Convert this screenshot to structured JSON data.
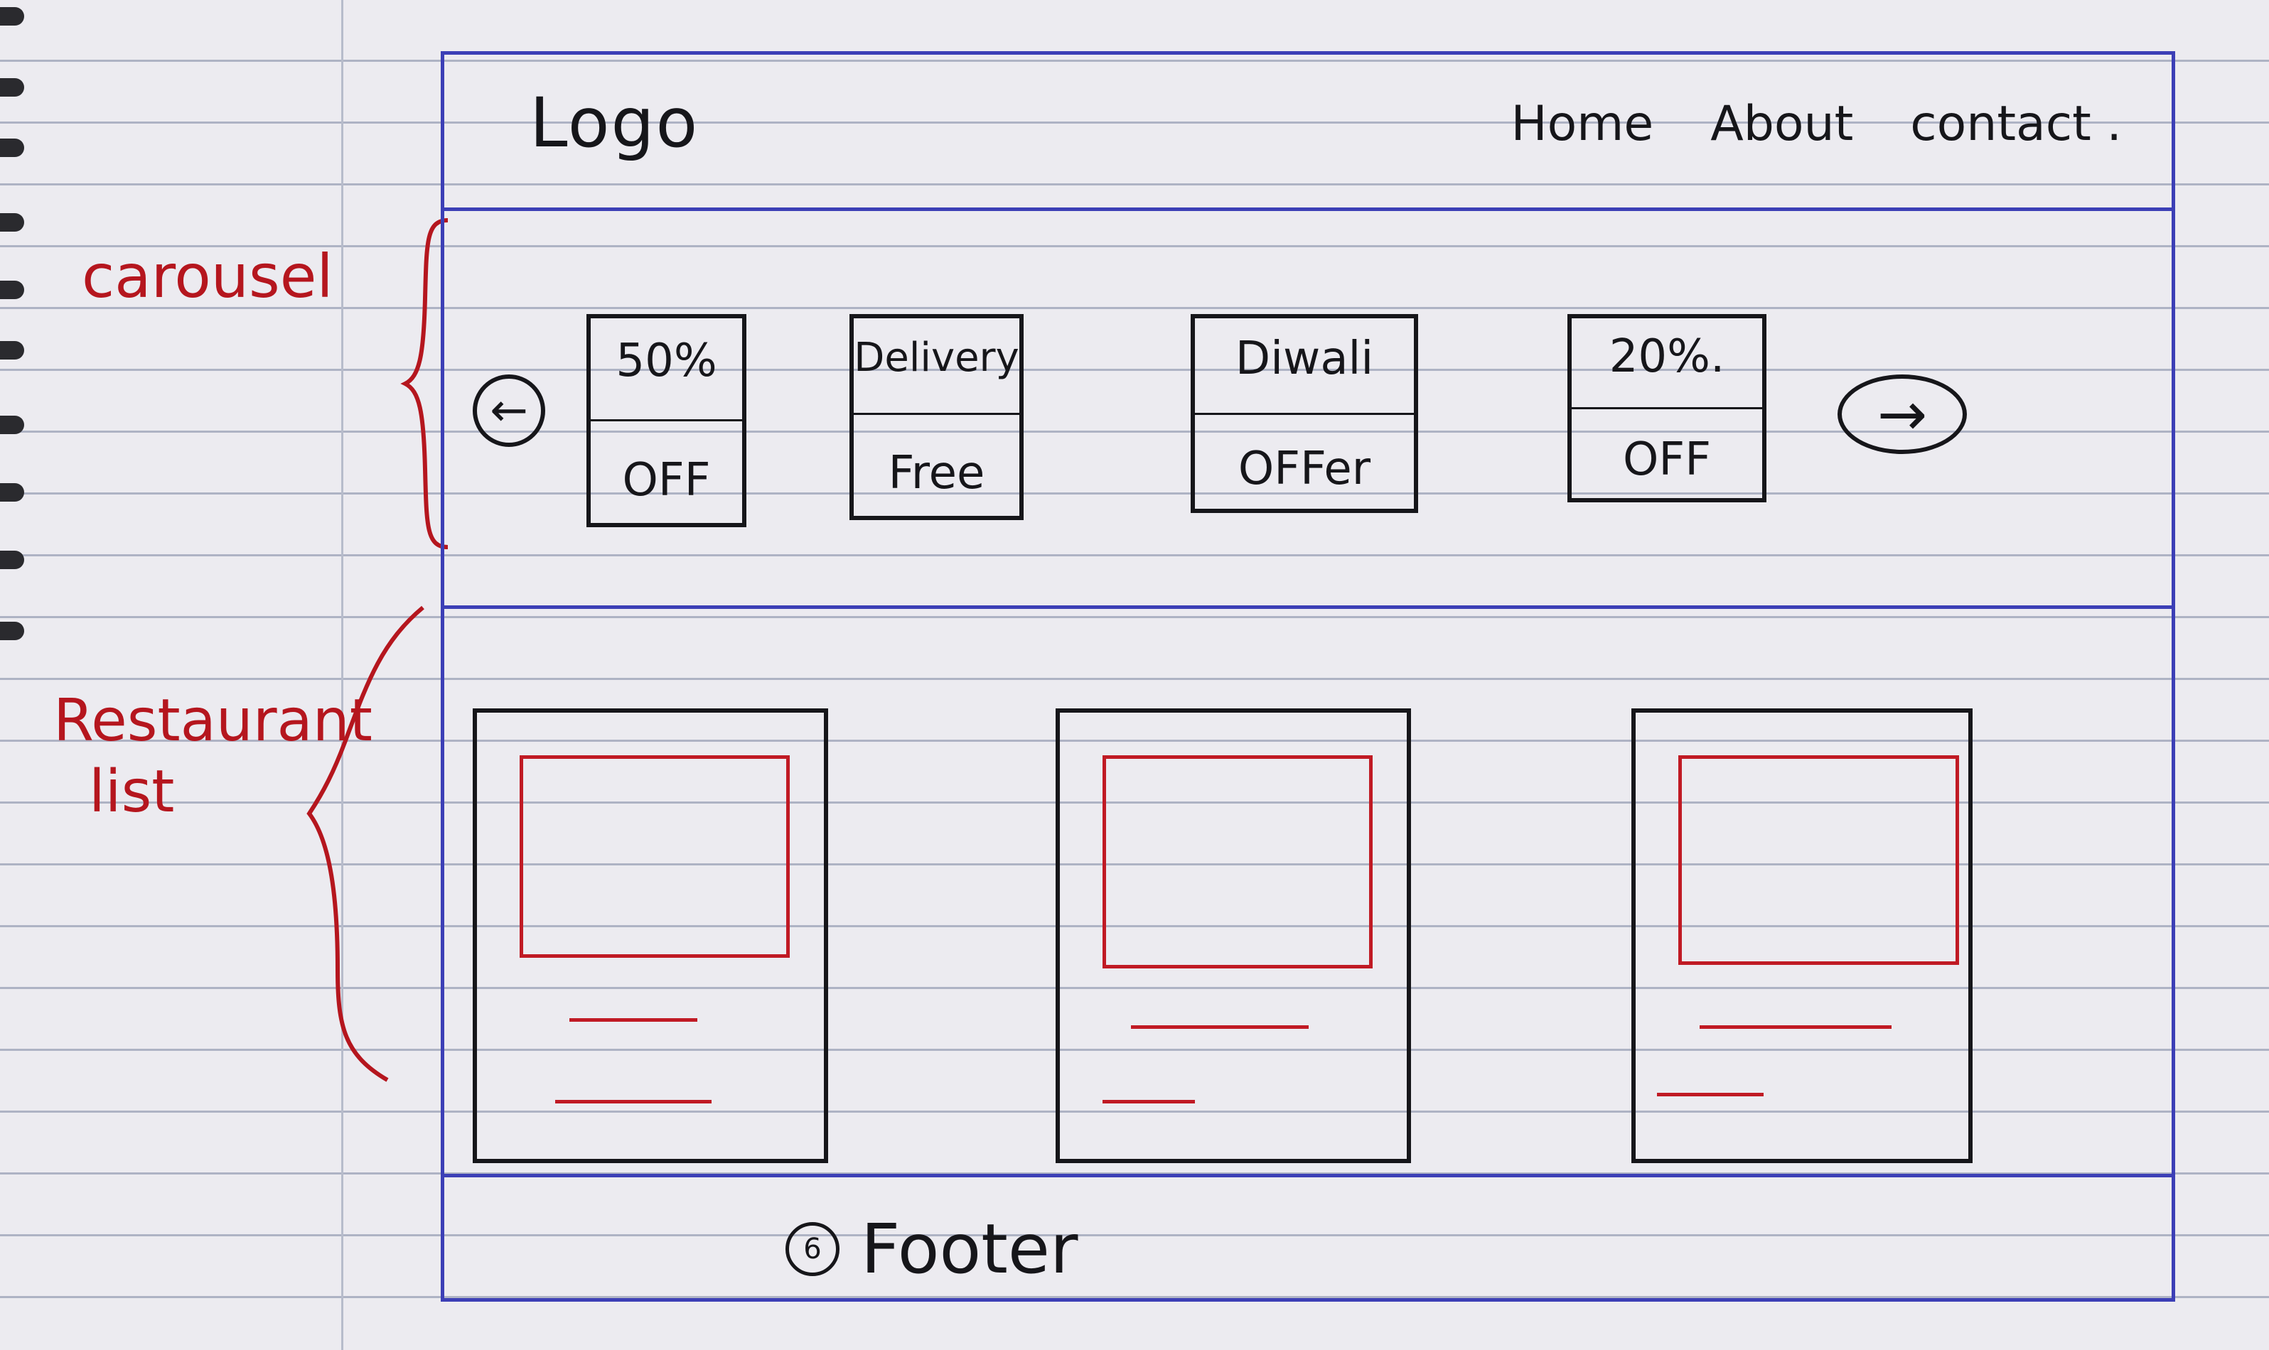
{
  "header": {
    "logo": "Logo",
    "nav": [
      "Home",
      "About",
      "contact ."
    ]
  },
  "annotations": {
    "carousel": "carousel",
    "restaurant_list_line1": "Restaurant",
    "restaurant_list_line2": "list"
  },
  "carousel": {
    "prev_arrow": "←",
    "next_arrow": "→",
    "slides": [
      {
        "line1": "50%",
        "line2": "OFF"
      },
      {
        "line1": "Delivery",
        "line2": "Free"
      },
      {
        "line1": "Diwali",
        "line2": "OFFer"
      },
      {
        "line1": "20%.",
        "line2": "OFF"
      }
    ]
  },
  "restaurant_cards": 3,
  "footer": {
    "number": "6",
    "label": "Footer"
  },
  "colors": {
    "frame": "#3c3fb6",
    "ink": "#16161a",
    "annotation": "#c01a24"
  }
}
